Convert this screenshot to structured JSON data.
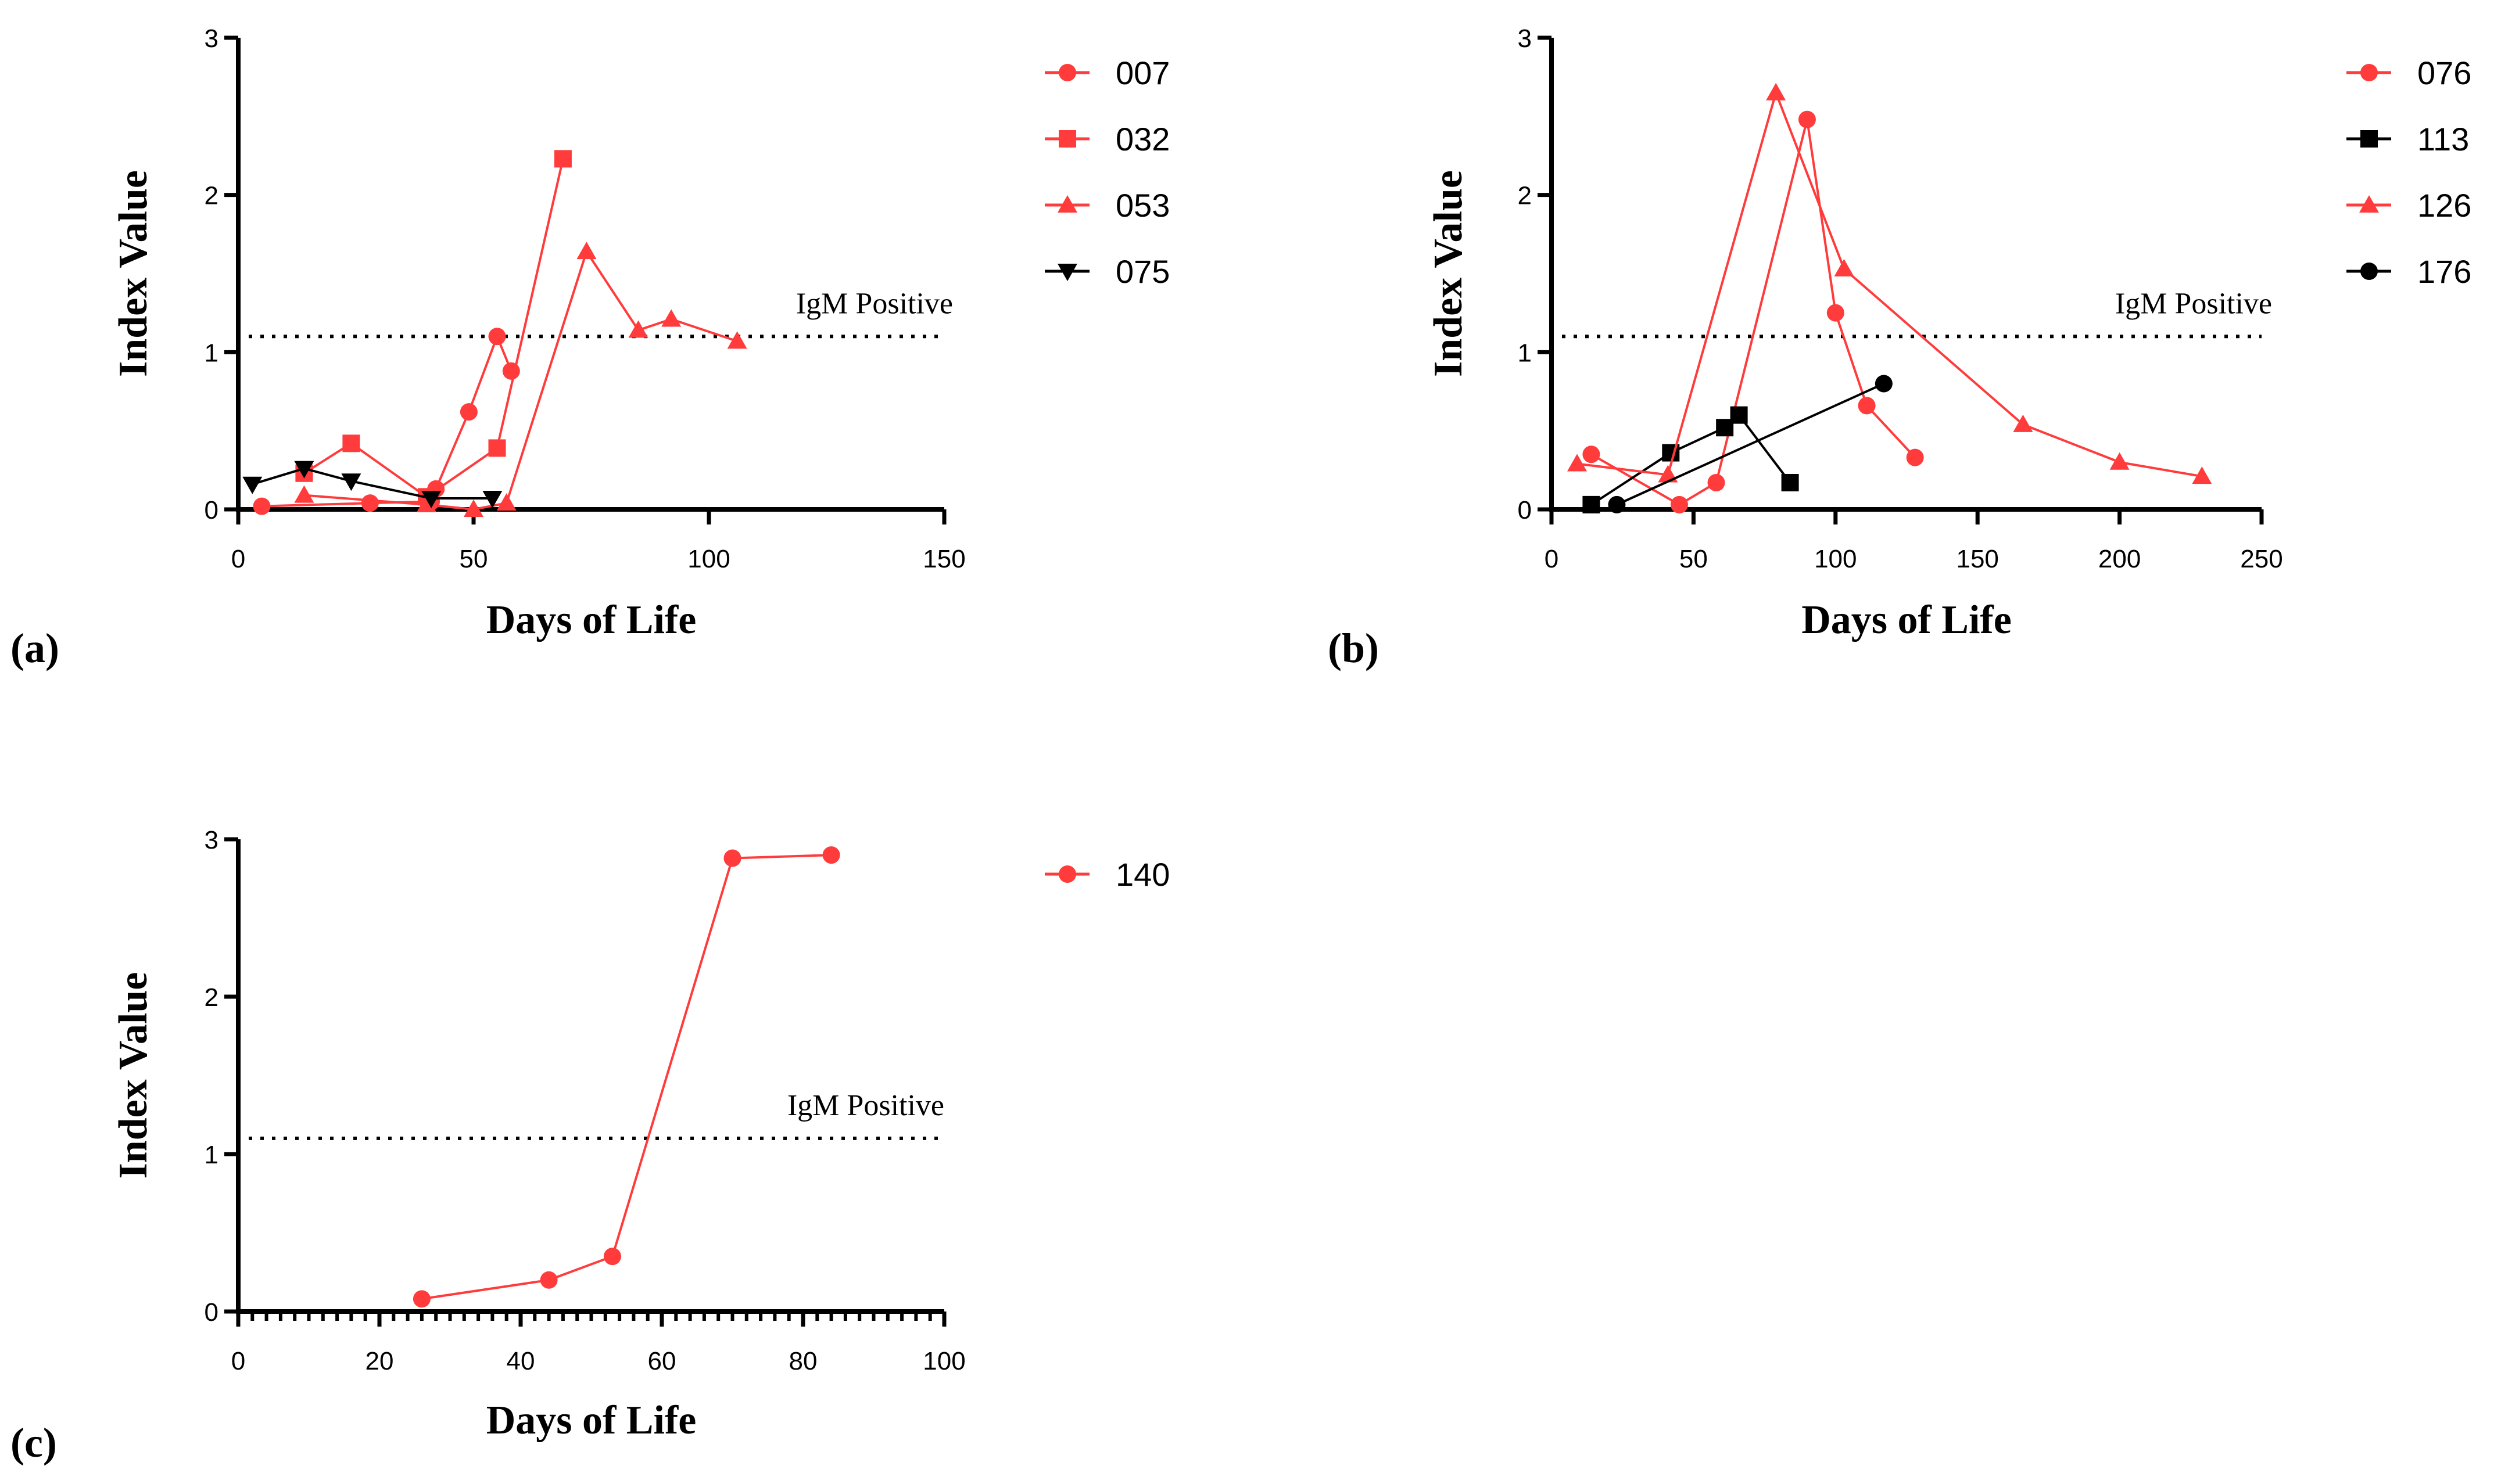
{
  "colors": {
    "red": "#ff3b3b",
    "black": "#000000"
  },
  "chart_data": [
    {
      "type": "line",
      "panel": "(a)",
      "xlabel": "Days of Life",
      "ylabel": "Index Value",
      "xlim": [
        0,
        150
      ],
      "ylim": [
        0,
        3
      ],
      "xticks": [
        0,
        50,
        100,
        150
      ],
      "yticks": [
        0,
        1,
        2,
        3
      ],
      "minor_ticks": false,
      "reference_line": {
        "y": 1.1,
        "label": "IgM Positive"
      },
      "legend_position": "right",
      "series": [
        {
          "name": "007",
          "color": "#ff3b3b",
          "marker": "circle",
          "points": [
            [
              5,
              0.02
            ],
            [
              28,
              0.04
            ],
            [
              41,
              0.05
            ],
            [
              42,
              0.13
            ],
            [
              49,
              0.62
            ],
            [
              55,
              1.1
            ],
            [
              58,
              0.88
            ]
          ]
        },
        {
          "name": "032",
          "color": "#ff3b3b",
          "marker": "square",
          "points": [
            [
              14,
              0.23
            ],
            [
              24,
              0.42
            ],
            [
              40,
              0.08
            ],
            [
              55,
              0.39
            ],
            [
              69,
              2.23
            ]
          ]
        },
        {
          "name": "053",
          "color": "#ff3b3b",
          "marker": "triangle-up",
          "points": [
            [
              14,
              0.09
            ],
            [
              40,
              0.03
            ],
            [
              50,
              0.0
            ],
            [
              57,
              0.04
            ],
            [
              74,
              1.64
            ],
            [
              85,
              1.14
            ],
            [
              92,
              1.21
            ],
            [
              106,
              1.07
            ]
          ]
        },
        {
          "name": "075",
          "color": "#000000",
          "marker": "triangle-down",
          "points": [
            [
              3,
              0.16
            ],
            [
              14,
              0.26
            ],
            [
              24,
              0.18
            ],
            [
              41,
              0.07
            ],
            [
              54,
              0.07
            ]
          ]
        }
      ]
    },
    {
      "type": "line",
      "panel": "(b)",
      "xlabel": "Days of Life",
      "ylabel": "Index Value",
      "xlim": [
        0,
        250
      ],
      "ylim": [
        0,
        3
      ],
      "xticks": [
        0,
        50,
        100,
        150,
        200,
        250
      ],
      "yticks": [
        0,
        1,
        2,
        3
      ],
      "minor_ticks": false,
      "reference_line": {
        "y": 1.1,
        "label": "IgM Positive"
      },
      "legend_position": "right",
      "series": [
        {
          "name": "076",
          "color": "#ff3b3b",
          "marker": "circle",
          "points": [
            [
              14,
              0.35
            ],
            [
              45,
              0.03
            ],
            [
              58,
              0.17
            ],
            [
              90,
              2.48
            ],
            [
              100,
              1.25
            ],
            [
              111,
              0.66
            ],
            [
              128,
              0.33
            ]
          ]
        },
        {
          "name": "113",
          "color": "#000000",
          "marker": "square",
          "points": [
            [
              14,
              0.03
            ],
            [
              42,
              0.36
            ],
            [
              61,
              0.52
            ],
            [
              66,
              0.6
            ],
            [
              84,
              0.17
            ]
          ]
        },
        {
          "name": "126",
          "color": "#ff3b3b",
          "marker": "triangle-up",
          "points": [
            [
              9,
              0.29
            ],
            [
              41,
              0.22
            ],
            [
              79,
              2.65
            ],
            [
              103,
              1.53
            ],
            [
              166,
              0.54
            ],
            [
              200,
              0.3
            ],
            [
              229,
              0.21
            ]
          ]
        },
        {
          "name": "176",
          "color": "#000000",
          "marker": "circle",
          "points": [
            [
              23,
              0.03
            ],
            [
              117,
              0.8
            ]
          ]
        }
      ]
    },
    {
      "type": "line",
      "panel": "(c)",
      "xlabel": "Days of Life",
      "ylabel": "Index Value",
      "xlim": [
        0,
        100
      ],
      "ylim": [
        0,
        3
      ],
      "xticks": [
        0,
        20,
        40,
        60,
        80,
        100
      ],
      "yticks": [
        0,
        1,
        2,
        3
      ],
      "minor_ticks": true,
      "reference_line": {
        "y": 1.1,
        "label": "IgM Positive"
      },
      "legend_position": "right",
      "series": [
        {
          "name": "140",
          "color": "#ff3b3b",
          "marker": "circle",
          "points": [
            [
              26,
              0.08
            ],
            [
              44,
              0.2
            ],
            [
              53,
              0.35
            ],
            [
              70,
              2.88
            ],
            [
              84,
              2.9
            ]
          ]
        }
      ]
    }
  ]
}
